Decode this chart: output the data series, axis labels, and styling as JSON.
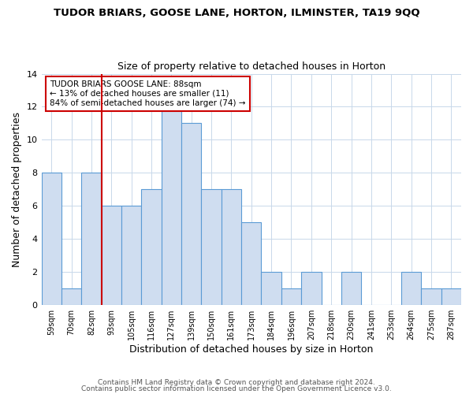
{
  "title": "TUDOR BRIARS, GOOSE LANE, HORTON, ILMINSTER, TA19 9QQ",
  "subtitle": "Size of property relative to detached houses in Horton",
  "xlabel": "Distribution of detached houses by size in Horton",
  "ylabel": "Number of detached properties",
  "bin_labels": [
    "59sqm",
    "70sqm",
    "82sqm",
    "93sqm",
    "105sqm",
    "116sqm",
    "127sqm",
    "139sqm",
    "150sqm",
    "161sqm",
    "173sqm",
    "184sqm",
    "196sqm",
    "207sqm",
    "218sqm",
    "230sqm",
    "241sqm",
    "253sqm",
    "264sqm",
    "275sqm",
    "287sqm"
  ],
  "bin_values": [
    8,
    1,
    8,
    6,
    6,
    7,
    12,
    11,
    7,
    7,
    5,
    2,
    1,
    2,
    0,
    2,
    0,
    0,
    2,
    1,
    1
  ],
  "bar_color": "#cfddf0",
  "bar_edge_color": "#5b9bd5",
  "vline_x_index": 2,
  "vline_color": "#cc0000",
  "annotation_text": "TUDOR BRIARS GOOSE LANE: 88sqm\n← 13% of detached houses are smaller (11)\n84% of semi-detached houses are larger (74) →",
  "annotation_box_edge": "#cc0000",
  "ylim": [
    0,
    14
  ],
  "yticks": [
    0,
    2,
    4,
    6,
    8,
    10,
    12,
    14
  ],
  "footer1": "Contains HM Land Registry data © Crown copyright and database right 2024.",
  "footer2": "Contains public sector information licensed under the Open Government Licence v3.0."
}
